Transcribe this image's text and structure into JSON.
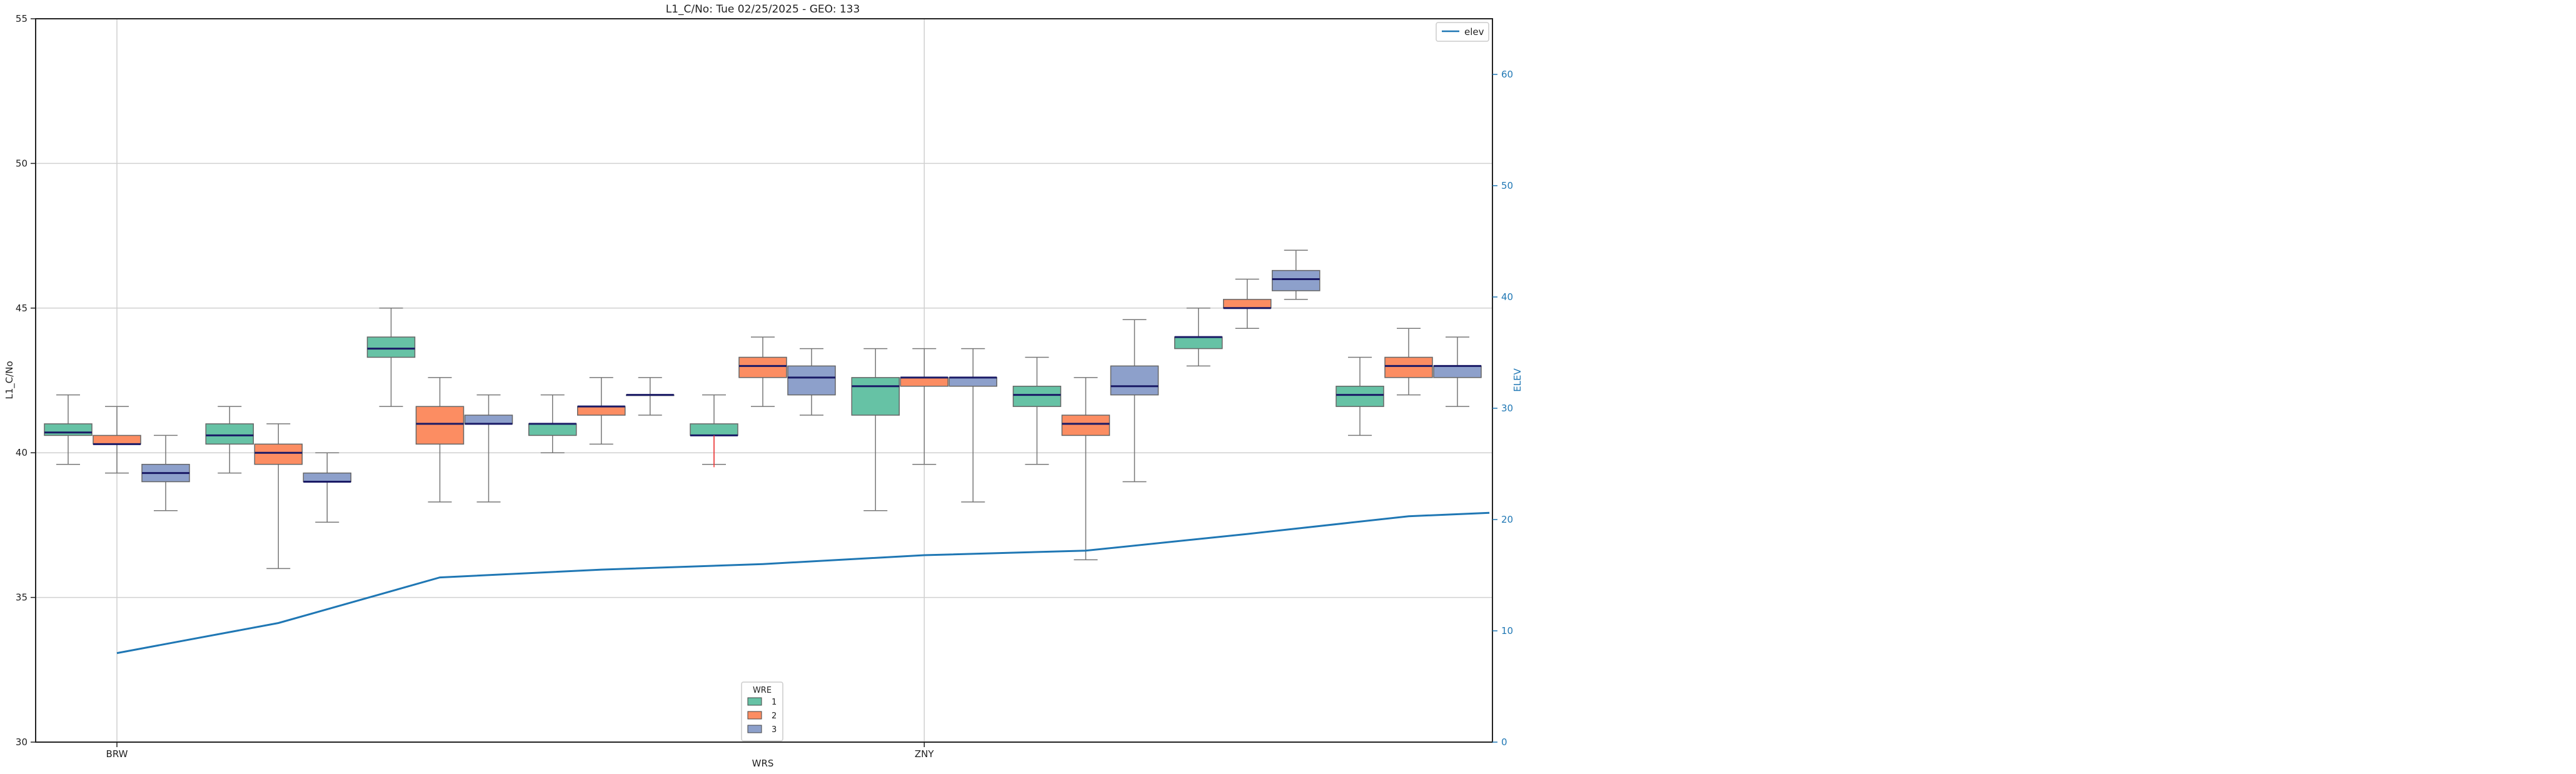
{
  "chart_data": {
    "type": "box",
    "title": "L1_C/No: Tue 02/25/2025 - GEO: 133",
    "xlabel": "WRS",
    "ylabel": "L1_C/No",
    "y2label": "ELEV",
    "ylim": [
      30,
      55
    ],
    "y2lim": [
      0,
      65
    ],
    "yticks": [
      "30",
      "35",
      "40",
      "45",
      "50",
      "55"
    ],
    "y2ticks": [
      "0",
      "10",
      "20",
      "30",
      "40",
      "50",
      "60"
    ],
    "x_tick_labels": [
      "BRW",
      "ZNY"
    ],
    "grid": true,
    "hue_legend": {
      "title": "WRE",
      "position": "bottom-center",
      "entries": [
        {
          "label": "1",
          "color": "#66c2a5"
        },
        {
          "label": "2",
          "color": "#fc8d62"
        },
        {
          "label": "3",
          "color": "#8da0cb"
        }
      ]
    },
    "line_legend": {
      "label": "elev",
      "position": "top-right",
      "color": "#1f77b4"
    },
    "stations": [
      {
        "boxes": [
          {
            "wre": 1,
            "q1": 40.6,
            "median": 40.7,
            "q3": 41.0,
            "wlo": 39.6,
            "whi": 42.0
          },
          {
            "wre": 2,
            "q1": 40.3,
            "median": 40.3,
            "q3": 40.6,
            "wlo": 39.3,
            "whi": 41.6
          },
          {
            "wre": 3,
            "q1": 39.0,
            "median": 39.3,
            "q3": 39.6,
            "wlo": 38.0,
            "whi": 40.6
          }
        ]
      },
      {
        "boxes": [
          {
            "wre": 1,
            "q1": 40.3,
            "median": 40.6,
            "q3": 41.0,
            "wlo": 39.3,
            "whi": 41.6
          },
          {
            "wre": 2,
            "q1": 39.6,
            "median": 40.0,
            "q3": 40.3,
            "wlo": 36.0,
            "whi": 41.0
          },
          {
            "wre": 3,
            "q1": 39.0,
            "median": 39.0,
            "q3": 39.3,
            "wlo": 37.6,
            "whi": 40.0
          }
        ]
      },
      {
        "boxes": [
          {
            "wre": 1,
            "q1": 43.3,
            "median": 43.6,
            "q3": 44.0,
            "wlo": 41.6,
            "whi": 45.0
          },
          {
            "wre": 2,
            "q1": 40.3,
            "median": 41.0,
            "q3": 41.6,
            "wlo": 38.3,
            "whi": 42.6
          },
          {
            "wre": 3,
            "q1": 41.0,
            "median": 41.0,
            "q3": 41.3,
            "wlo": 38.3,
            "whi": 42.0
          }
        ]
      },
      {
        "boxes": [
          {
            "wre": 1,
            "q1": 40.6,
            "median": 41.0,
            "q3": 41.0,
            "wlo": 40.0,
            "whi": 42.0
          },
          {
            "wre": 2,
            "q1": 41.3,
            "median": 41.6,
            "q3": 41.6,
            "wlo": 40.3,
            "whi": 42.6
          },
          {
            "wre": 3,
            "q1": 42.0,
            "median": 42.0,
            "q3": 42.0,
            "wlo": 41.3,
            "whi": 42.6
          }
        ]
      },
      {
        "boxes": [
          {
            "wre": 1,
            "q1": 40.6,
            "median": 40.6,
            "q3": 41.0,
            "wlo": 39.6,
            "whi": 42.0
          },
          {
            "wre": 2,
            "q1": 42.6,
            "median": 43.0,
            "q3": 43.3,
            "wlo": 41.6,
            "whi": 44.0
          },
          {
            "wre": 3,
            "q1": 42.0,
            "median": 42.6,
            "q3": 43.0,
            "wlo": 41.3,
            "whi": 43.6
          }
        ]
      },
      {
        "boxes": [
          {
            "wre": 1,
            "q1": 41.3,
            "median": 42.3,
            "q3": 42.6,
            "wlo": 38.0,
            "whi": 43.6
          },
          {
            "wre": 2,
            "q1": 42.3,
            "median": 42.6,
            "q3": 42.6,
            "wlo": 39.6,
            "whi": 43.6
          },
          {
            "wre": 3,
            "q1": 42.3,
            "median": 42.6,
            "q3": 42.6,
            "wlo": 38.3,
            "whi": 43.6
          }
        ]
      },
      {
        "boxes": [
          {
            "wre": 1,
            "q1": 41.6,
            "median": 42.0,
            "q3": 42.3,
            "wlo": 39.6,
            "whi": 43.3
          },
          {
            "wre": 2,
            "q1": 40.6,
            "median": 41.0,
            "q3": 41.3,
            "wlo": 36.3,
            "whi": 42.6
          },
          {
            "wre": 3,
            "q1": 42.0,
            "median": 42.3,
            "q3": 43.0,
            "wlo": 39.0,
            "whi": 44.6
          }
        ]
      },
      {
        "boxes": [
          {
            "wre": 1,
            "q1": 43.6,
            "median": 44.0,
            "q3": 44.0,
            "wlo": 43.0,
            "whi": 45.0
          },
          {
            "wre": 2,
            "q1": 45.0,
            "median": 45.0,
            "q3": 45.3,
            "wlo": 44.3,
            "whi": 46.0
          },
          {
            "wre": 3,
            "q1": 45.6,
            "median": 46.0,
            "q3": 46.3,
            "wlo": 45.3,
            "whi": 47.0
          }
        ]
      },
      {
        "boxes": [
          {
            "wre": 1,
            "q1": 41.6,
            "median": 42.0,
            "q3": 42.3,
            "wlo": 40.6,
            "whi": 43.3
          },
          {
            "wre": 2,
            "q1": 42.6,
            "median": 43.0,
            "q3": 43.3,
            "wlo": 42.0,
            "whi": 44.3
          },
          {
            "wre": 3,
            "q1": 42.6,
            "median": 43.0,
            "q3": 43.0,
            "wlo": 41.6,
            "whi": 44.0
          }
        ]
      }
    ],
    "elev": {
      "x": [
        0,
        1,
        2,
        3,
        4,
        5,
        6,
        7,
        8,
        8.5
      ],
      "y": [
        8.0,
        10.7,
        14.8,
        15.5,
        16.0,
        16.8,
        17.2,
        18.7,
        20.3,
        20.6
      ]
    },
    "fliers": [
      {
        "station": 4,
        "wre": 1,
        "value": 39.5,
        "color": "#ff3333"
      }
    ]
  }
}
